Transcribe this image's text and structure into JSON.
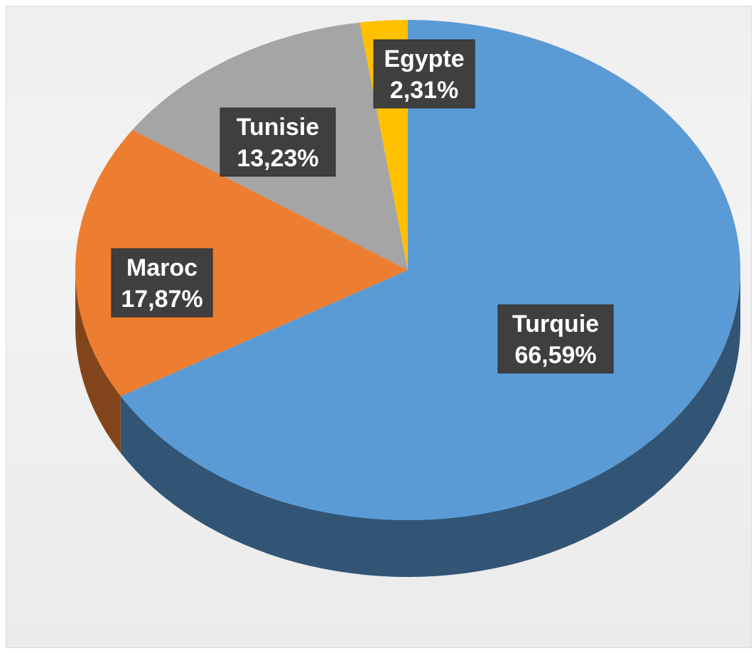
{
  "chart_data": {
    "type": "pie",
    "style": "3d",
    "title": "",
    "slices": [
      {
        "label": "Turquie",
        "value": 66.59,
        "display": "66,59%",
        "color": "#5b9bd5"
      },
      {
        "label": "Maroc",
        "value": 17.87,
        "display": "17,87%",
        "color": "#ed7d31"
      },
      {
        "label": "Tunisie",
        "value": 13.23,
        "display": "13,23%",
        "color": "#a5a5a5"
      },
      {
        "label": "Egypte",
        "value": 2.31,
        "display": "2,31%",
        "color": "#ffc000"
      }
    ],
    "legend": "none",
    "data_labels": "category and percentage"
  }
}
